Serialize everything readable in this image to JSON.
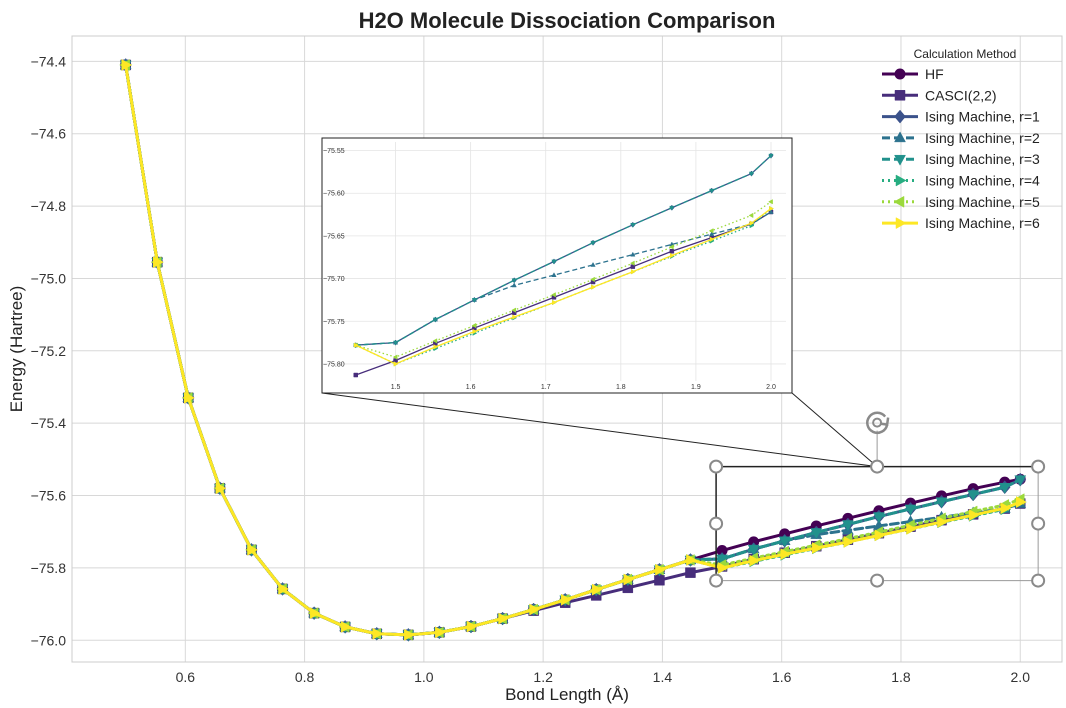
{
  "chart_data": {
    "type": "line",
    "title": "H2O Molecule Dissociation Comparison",
    "xlabel": "Bond Length (Å)",
    "ylabel": "Energy (Hartree)",
    "xlim": [
      0.41,
      2.07
    ],
    "ylim": [
      -76.06,
      -74.33
    ],
    "xticks": [
      0.6,
      0.8,
      1.0,
      1.2,
      1.4,
      1.6,
      1.8,
      2.0
    ],
    "yticks": [
      -76.0,
      -75.8,
      -75.6,
      -75.4,
      -75.2,
      -75.0,
      -74.8,
      -74.6,
      -74.4
    ],
    "grid": true,
    "legend": {
      "title": "Calculation Method",
      "position": "top-right"
    },
    "x": [
      0.5,
      0.553,
      0.605,
      0.658,
      0.711,
      0.763,
      0.816,
      0.868,
      0.921,
      0.974,
      1.026,
      1.079,
      1.132,
      1.184,
      1.237,
      1.289,
      1.342,
      1.395,
      1.447,
      1.5,
      1.553,
      1.605,
      1.658,
      1.711,
      1.763,
      1.816,
      1.868,
      1.921,
      1.974,
      2.0
    ],
    "base_energy": [
      -74.41,
      -74.955,
      -75.33,
      -75.58,
      -75.75,
      -75.858,
      -75.925,
      -75.963,
      -75.982,
      -75.985,
      -75.978,
      -75.962,
      -75.94,
      -75.915,
      -75.888,
      -75.86,
      -75.832,
      -75.805,
      -75.778,
      -75.752,
      -75.728,
      -75.706,
      -75.684,
      -75.663,
      -75.642,
      -75.621,
      -75.601,
      -75.581,
      -75.563,
      -75.555
    ],
    "series": [
      {
        "name": "HF",
        "color": "#440154",
        "dash": "",
        "marker": "circle",
        "values": [
          -74.41,
          -74.955,
          -75.33,
          -75.58,
          -75.75,
          -75.858,
          -75.925,
          -75.963,
          -75.982,
          -75.985,
          -75.978,
          -75.962,
          -75.94,
          -75.915,
          -75.888,
          -75.86,
          -75.832,
          -75.805,
          -75.778,
          -75.752,
          -75.728,
          -75.706,
          -75.684,
          -75.663,
          -75.642,
          -75.621,
          -75.601,
          -75.581,
          -75.563,
          -75.555
        ]
      },
      {
        "name": "CASCI(2,2)",
        "color": "#472d7b",
        "dash": "",
        "marker": "square",
        "values": [
          -74.41,
          -74.955,
          -75.33,
          -75.58,
          -75.75,
          -75.858,
          -75.925,
          -75.963,
          -75.982,
          -75.985,
          -75.978,
          -75.962,
          -75.94,
          -75.918,
          -75.896,
          -75.876,
          -75.855,
          -75.834,
          -75.813,
          -75.796,
          -75.776,
          -75.758,
          -75.74,
          -75.722,
          -75.704,
          -75.686,
          -75.668,
          -75.652,
          -75.636,
          -75.622
        ]
      },
      {
        "name": "Ising Machine, r=1",
        "color": "#3b528b",
        "dash": "",
        "marker": "diamond",
        "values": [
          -74.41,
          -74.955,
          -75.33,
          -75.58,
          -75.75,
          -75.858,
          -75.925,
          -75.963,
          -75.982,
          -75.985,
          -75.978,
          -75.962,
          -75.94,
          -75.915,
          -75.888,
          -75.86,
          -75.832,
          -75.805,
          -75.778,
          -75.775,
          -75.748,
          -75.725,
          -75.702,
          -75.68,
          -75.658,
          -75.637,
          -75.617,
          -75.597,
          -75.577,
          -75.556
        ]
      },
      {
        "name": "Ising Machine, r=2",
        "color": "#2c728e",
        "dash": "8,4",
        "marker": "triangle-up",
        "values": [
          -74.41,
          -74.955,
          -75.33,
          -75.58,
          -75.75,
          -75.858,
          -75.925,
          -75.963,
          -75.982,
          -75.985,
          -75.978,
          -75.962,
          -75.94,
          -75.915,
          -75.888,
          -75.86,
          -75.832,
          -75.805,
          -75.778,
          -75.775,
          -75.748,
          -75.725,
          -75.708,
          -75.696,
          -75.684,
          -75.672,
          -75.66,
          -75.648,
          -75.636,
          -75.622
        ]
      },
      {
        "name": "Ising Machine, r=3",
        "color": "#21918c",
        "dash": "8,4",
        "marker": "triangle-down",
        "values": [
          -74.41,
          -74.955,
          -75.33,
          -75.58,
          -75.75,
          -75.858,
          -75.925,
          -75.963,
          -75.982,
          -75.985,
          -75.978,
          -75.962,
          -75.94,
          -75.915,
          -75.888,
          -75.86,
          -75.832,
          -75.805,
          -75.778,
          -75.775,
          -75.748,
          -75.725,
          -75.702,
          -75.68,
          -75.658,
          -75.637,
          -75.617,
          -75.597,
          -75.577,
          -75.556
        ]
      },
      {
        "name": "Ising Machine, r=4",
        "color": "#27ad81",
        "dash": "2,4",
        "marker": "triangle-right",
        "values": [
          -74.41,
          -74.955,
          -75.33,
          -75.58,
          -75.75,
          -75.858,
          -75.925,
          -75.963,
          -75.982,
          -75.985,
          -75.978,
          -75.962,
          -75.94,
          -75.915,
          -75.888,
          -75.86,
          -75.832,
          -75.805,
          -75.778,
          -75.8,
          -75.782,
          -75.764,
          -75.746,
          -75.728,
          -75.71,
          -75.692,
          -75.674,
          -75.656,
          -75.638,
          -75.618
        ]
      },
      {
        "name": "Ising Machine, r=5",
        "color": "#9bd93c",
        "dash": "2,4",
        "marker": "triangle-left",
        "values": [
          -74.41,
          -74.955,
          -75.33,
          -75.58,
          -75.75,
          -75.858,
          -75.925,
          -75.963,
          -75.982,
          -75.985,
          -75.978,
          -75.962,
          -75.94,
          -75.915,
          -75.888,
          -75.86,
          -75.832,
          -75.805,
          -75.778,
          -75.792,
          -75.773,
          -75.755,
          -75.737,
          -75.719,
          -75.701,
          -75.682,
          -75.663,
          -75.644,
          -75.626,
          -75.61
        ]
      },
      {
        "name": "Ising Machine, r=6",
        "color": "#fde725",
        "dash": "",
        "marker": "triangle-right",
        "values": [
          -74.41,
          -74.955,
          -75.33,
          -75.58,
          -75.75,
          -75.858,
          -75.925,
          -75.963,
          -75.982,
          -75.985,
          -75.978,
          -75.962,
          -75.94,
          -75.915,
          -75.888,
          -75.86,
          -75.832,
          -75.805,
          -75.778,
          -75.8,
          -75.78,
          -75.762,
          -75.745,
          -75.728,
          -75.71,
          -75.692,
          -75.673,
          -75.654,
          -75.635,
          -75.618
        ]
      }
    ],
    "inset": {
      "xlim": [
        1.43,
        2.02
      ],
      "ylim": [
        -75.82,
        -75.54
      ],
      "xticks": [
        1.5,
        1.6,
        1.7,
        1.8,
        1.9,
        2.0
      ],
      "yticks": [
        -75.55,
        -75.6,
        -75.65,
        -75.7,
        -75.75,
        -75.8
      ],
      "xtick_labels": [
        "1.5",
        "1.6",
        "1.7",
        "1.8",
        "1.9",
        "2.0"
      ],
      "ytick_labels": [
        "−75.55",
        "−75.60",
        "−75.65",
        "−75.70",
        "−75.75",
        "−75.80"
      ]
    },
    "tick_labels": {
      "x": [
        "0.6",
        "0.8",
        "1.0",
        "1.2",
        "1.4",
        "1.6",
        "1.8",
        "2.0"
      ],
      "y": [
        "−76.0",
        "−75.8",
        "−75.6",
        "−75.4",
        "−75.2",
        "−75.0",
        "−74.8",
        "−74.6",
        "−74.4"
      ]
    },
    "zoom_region": {
      "xlim": [
        1.49,
        2.03
      ],
      "ylim": [
        -75.835,
        -75.52
      ]
    }
  }
}
